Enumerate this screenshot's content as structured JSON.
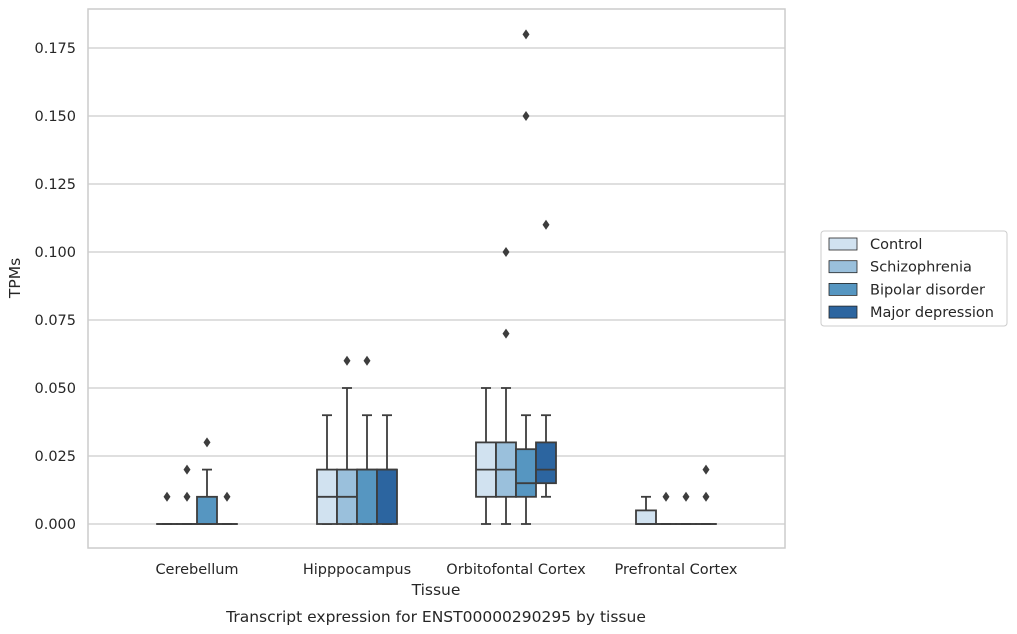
{
  "chart_data": {
    "type": "box",
    "title": "",
    "caption": "Transcript expression for ENST00000290295 by tissue",
    "xlabel": "Tissue",
    "ylabel": "TPMs",
    "ylim": [
      -0.0088,
      0.1855
    ],
    "yticks": [
      0.0,
      0.025,
      0.05,
      0.075,
      0.1,
      0.125,
      0.15,
      0.175
    ],
    "ytick_labels": [
      "0.000",
      "0.025",
      "0.050",
      "0.075",
      "0.100",
      "0.125",
      "0.150",
      "0.175"
    ],
    "grid": "horizontal",
    "legend_position": "right",
    "categories": [
      "Cerebellum",
      "Hipppocampus",
      "Orbitofontal Cortex",
      "Prefrontal Cortex"
    ],
    "series": [
      {
        "name": "Control",
        "color": "#d1e2f0",
        "boxes": [
          {
            "min": 0,
            "q1": 0,
            "median": 0,
            "q3": 0,
            "max": 0,
            "outliers": [
              0.01
            ]
          },
          {
            "min": 0,
            "q1": 0,
            "median": 0.01,
            "q3": 0.02,
            "max": 0.04,
            "outliers": []
          },
          {
            "min": 0,
            "q1": 0.01,
            "median": 0.02,
            "q3": 0.03,
            "max": 0.05,
            "outliers": []
          },
          {
            "min": 0,
            "q1": 0,
            "median": 0,
            "q3": 0.005,
            "max": 0.01,
            "outliers": []
          }
        ]
      },
      {
        "name": "Schizophrenia",
        "color": "#9ac0dc",
        "boxes": [
          {
            "min": 0,
            "q1": 0,
            "median": 0,
            "q3": 0,
            "max": 0,
            "outliers": [
              0.01,
              0.02
            ]
          },
          {
            "min": 0,
            "q1": 0,
            "median": 0.01,
            "q3": 0.02,
            "max": 0.05,
            "outliers": [
              0.06
            ]
          },
          {
            "min": 0,
            "q1": 0.01,
            "median": 0.02,
            "q3": 0.03,
            "max": 0.05,
            "outliers": [
              0.07,
              0.1
            ]
          },
          {
            "min": 0,
            "q1": 0,
            "median": 0,
            "q3": 0,
            "max": 0,
            "outliers": [
              0.01
            ]
          }
        ]
      },
      {
        "name": "Bipolar disorder",
        "color": "#5696c1",
        "boxes": [
          {
            "min": 0,
            "q1": 0,
            "median": 0,
            "q3": 0.01,
            "max": 0.02,
            "outliers": [
              0.03
            ]
          },
          {
            "min": 0,
            "q1": 0,
            "median": 0.02,
            "q3": 0.02,
            "max": 0.04,
            "outliers": [
              0.06
            ]
          },
          {
            "min": 0,
            "q1": 0.01,
            "median": 0.015,
            "q3": 0.0275,
            "max": 0.04,
            "outliers": [
              0.15,
              0.18
            ]
          },
          {
            "min": 0,
            "q1": 0,
            "median": 0,
            "q3": 0,
            "max": 0,
            "outliers": [
              0.01
            ]
          }
        ]
      },
      {
        "name": "Major depression",
        "color": "#2c65a0",
        "boxes": [
          {
            "min": 0,
            "q1": 0,
            "median": 0,
            "q3": 0,
            "max": 0,
            "outliers": [
              0.01
            ]
          },
          {
            "min": 0,
            "q1": 0,
            "median": 0.02,
            "q3": 0.02,
            "max": 0.04,
            "outliers": []
          },
          {
            "min": 0.01,
            "q1": 0.015,
            "median": 0.02,
            "q3": 0.03,
            "max": 0.04,
            "outliers": [
              0.11
            ]
          },
          {
            "min": 0,
            "q1": 0,
            "median": 0,
            "q3": 0,
            "max": 0,
            "outliers": [
              0.01,
              0.02
            ]
          }
        ]
      }
    ]
  }
}
